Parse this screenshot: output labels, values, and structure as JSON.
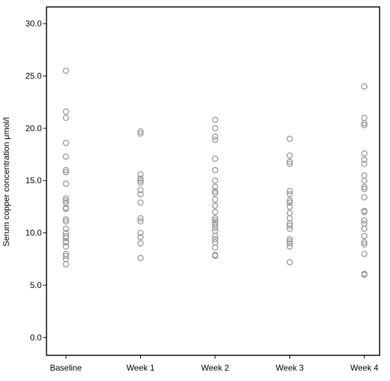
{
  "chart_data": {
    "type": "scatter",
    "title": "",
    "xlabel": "",
    "ylabel": "Serum copper concentration μmol/l",
    "categories": [
      "Baseline",
      "Week 1",
      "Week 2",
      "Week 3",
      "Week 4"
    ],
    "ylim": [
      -1.7,
      31.6
    ],
    "yticks": [
      "0.0",
      "5.0",
      "10.0",
      "15.0",
      "20.0",
      "25.0",
      "30.0"
    ],
    "ytick_values": [
      0,
      5,
      10,
      15,
      20,
      25,
      30
    ],
    "grid": false,
    "legend": "none",
    "marker": "open-circle",
    "marker_color": "#9a9a9a",
    "series": [
      {
        "category": "Baseline",
        "values": [
          25.5,
          21.6,
          21.0,
          18.6,
          17.3,
          16.0,
          15.8,
          14.7,
          13.3,
          13.1,
          12.9,
          12.4,
          12.3,
          11.3,
          11.1,
          10.4,
          10.0,
          9.7,
          9.5,
          9.2,
          9.1,
          8.7,
          8.0,
          7.8,
          7.5,
          7.0
        ]
      },
      {
        "category": "Week 1",
        "values": [
          19.7,
          19.5,
          15.6,
          15.2,
          15.0,
          14.8,
          14.1,
          13.7,
          12.9,
          11.4,
          11.1,
          10.0,
          9.6,
          9.0,
          7.6
        ]
      },
      {
        "category": "Week 2",
        "values": [
          20.8,
          20.0,
          19.2,
          18.9,
          17.1,
          16.0,
          15.0,
          14.4,
          14.0,
          13.8,
          13.2,
          12.6,
          12.0,
          11.4,
          11.2,
          11.0,
          10.8,
          10.5,
          10.2,
          9.7,
          9.4,
          9.1,
          8.6,
          7.9,
          7.8
        ]
      },
      {
        "category": "Week 3",
        "values": [
          19.0,
          17.4,
          16.8,
          16.6,
          14.0,
          13.7,
          13.1,
          12.9,
          12.5,
          11.9,
          11.4,
          10.9,
          10.7,
          10.4,
          9.4,
          9.2,
          9.0,
          8.7,
          7.2
        ]
      },
      {
        "category": "Week 4",
        "values": [
          24.0,
          21.0,
          20.5,
          20.3,
          17.6,
          17.0,
          16.6,
          15.5,
          15.0,
          14.4,
          14.2,
          13.4,
          12.1,
          12.0,
          11.2,
          10.9,
          10.4,
          9.7,
          9.1,
          8.9,
          8.0,
          6.1,
          6.0
        ]
      }
    ]
  }
}
